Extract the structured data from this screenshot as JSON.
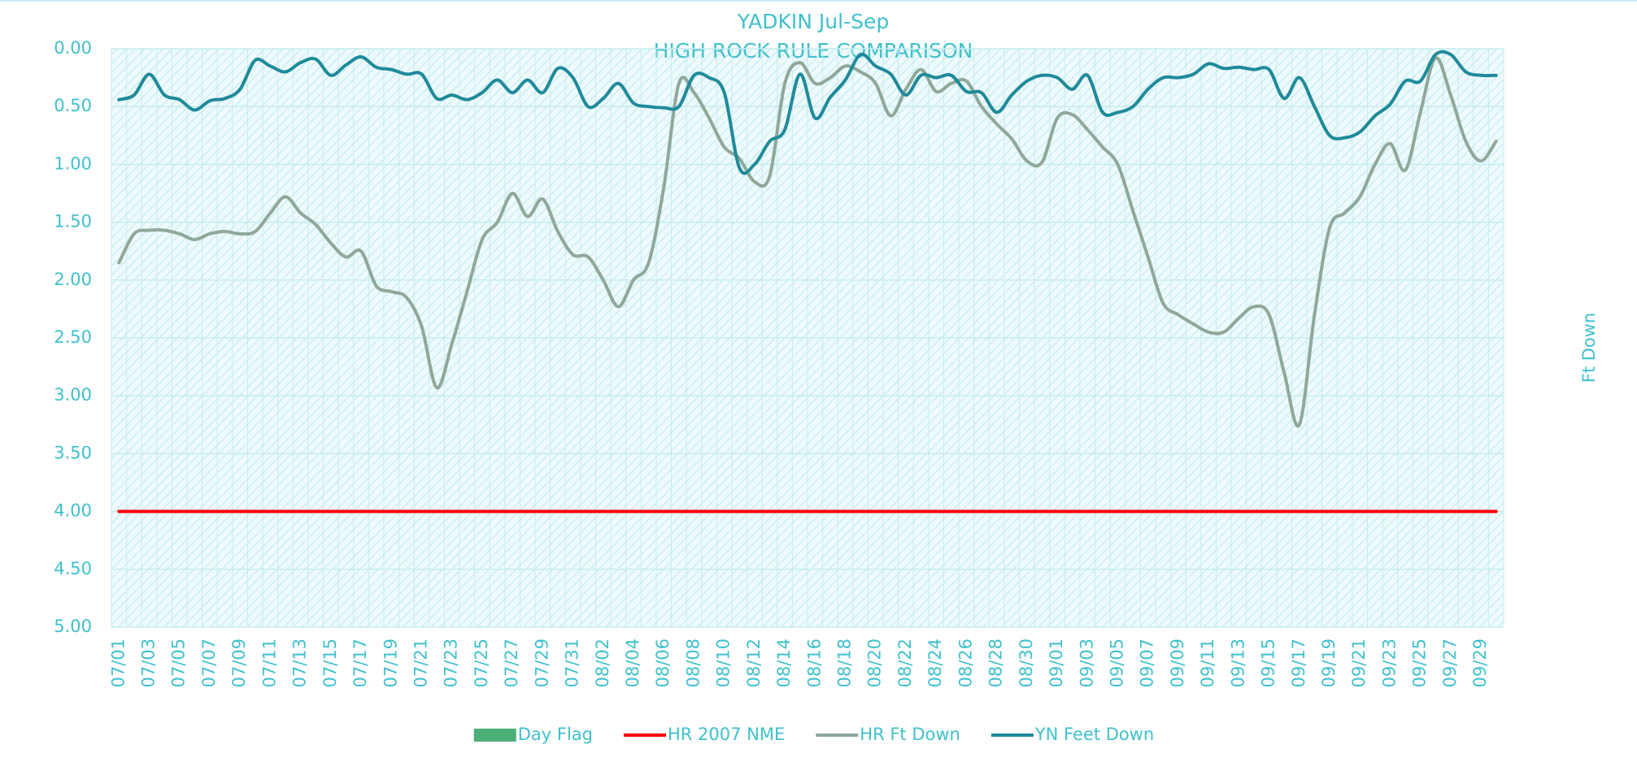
{
  "chart_data": {
    "type": "line",
    "title": "YADKIN Jul-Sep",
    "subtitle": "HIGH ROCK RULE COMPARISON",
    "ylabel": "Ft Down",
    "y_inverted": true,
    "ylim": [
      0,
      5
    ],
    "yticks": [
      {
        "value": 0,
        "label": "0.00"
      },
      {
        "value": 0.5,
        "label": "0.50"
      },
      {
        "value": 1,
        "label": "1.00"
      },
      {
        "value": 1.5,
        "label": "1.50"
      },
      {
        "value": 2,
        "label": "2.00"
      },
      {
        "value": 2.5,
        "label": "2.50"
      },
      {
        "value": 3,
        "label": "3.00"
      },
      {
        "value": 3.5,
        "label": "3.50"
      },
      {
        "value": 4,
        "label": "4.00"
      },
      {
        "value": 4.5,
        "label": "4.50"
      },
      {
        "value": 5,
        "label": "5.00"
      }
    ],
    "grid": true,
    "legend": "bottom",
    "categories": [
      "07/01",
      null,
      "07/03",
      null,
      "07/05",
      null,
      "07/07",
      null,
      "07/09",
      null,
      "07/11",
      null,
      "07/13",
      null,
      "07/15",
      null,
      "07/17",
      null,
      "07/19",
      null,
      "07/21",
      null,
      "07/23",
      null,
      "07/25",
      null,
      "07/27",
      null,
      "07/29",
      null,
      "07/31",
      null,
      "08/02",
      null,
      "08/04",
      null,
      "08/06",
      null,
      "08/08",
      null,
      "08/10",
      null,
      "08/12",
      null,
      "08/14",
      null,
      "08/16",
      null,
      "08/18",
      null,
      "08/20",
      null,
      "08/22",
      null,
      "08/24",
      null,
      "08/26",
      null,
      "08/28",
      null,
      "08/30",
      null,
      "09/01",
      null,
      "09/03",
      null,
      "09/05",
      null,
      "09/07",
      null,
      "09/09",
      null,
      "09/11",
      null,
      "09/13",
      null,
      "09/15",
      null,
      "09/17",
      null,
      "09/19",
      null,
      "09/21",
      null,
      "09/23",
      null,
      "09/25",
      null,
      "09/27",
      null,
      "09/29",
      null
    ],
    "series": [
      {
        "name": "Day Flag",
        "type": "bar",
        "color": "#4caf78",
        "values": [
          0,
          0,
          0,
          0,
          0,
          0,
          0,
          0,
          0,
          0,
          0,
          0,
          0,
          0,
          0,
          0,
          0,
          0,
          0,
          0,
          0,
          0,
          0,
          0,
          0,
          0,
          0,
          0,
          0,
          0,
          0,
          0,
          0,
          0,
          0,
          0,
          0,
          0,
          0,
          0,
          0,
          0,
          0,
          0,
          0,
          0,
          0,
          0,
          0,
          0,
          0,
          0,
          0,
          0,
          0,
          0,
          0,
          0,
          0,
          0,
          0,
          0,
          0,
          0,
          0,
          0,
          0,
          0,
          0,
          0,
          0,
          0,
          0,
          0,
          0,
          0,
          0,
          0,
          0,
          0,
          0,
          0,
          0,
          0,
          0,
          0,
          0,
          0,
          0,
          0,
          0,
          0
        ]
      },
      {
        "name": "HR 2007 NME",
        "type": "line",
        "color": "#ff0000",
        "values": [
          4,
          4,
          4,
          4,
          4,
          4,
          4,
          4,
          4,
          4,
          4,
          4,
          4,
          4,
          4,
          4,
          4,
          4,
          4,
          4,
          4,
          4,
          4,
          4,
          4,
          4,
          4,
          4,
          4,
          4,
          4,
          4,
          4,
          4,
          4,
          4,
          4,
          4,
          4,
          4,
          4,
          4,
          4,
          4,
          4,
          4,
          4,
          4,
          4,
          4,
          4,
          4,
          4,
          4,
          4,
          4,
          4,
          4,
          4,
          4,
          4,
          4,
          4,
          4,
          4,
          4,
          4,
          4,
          4,
          4,
          4,
          4,
          4,
          4,
          4,
          4,
          4,
          4,
          4,
          4,
          4,
          4,
          4,
          4,
          4,
          4,
          4,
          4,
          4,
          4,
          4,
          4
        ]
      },
      {
        "name": "HR Ft Down",
        "type": "line",
        "color": "#8fa89a",
        "values": [
          1.85,
          1.6,
          1.57,
          1.57,
          1.6,
          1.65,
          1.6,
          1.58,
          1.6,
          1.58,
          1.42,
          1.28,
          1.42,
          1.52,
          1.68,
          1.8,
          1.75,
          2.05,
          2.1,
          2.15,
          2.4,
          2.93,
          2.55,
          2.1,
          1.65,
          1.5,
          1.25,
          1.45,
          1.3,
          1.58,
          1.78,
          1.8,
          2.0,
          2.23,
          2.0,
          1.85,
          1.2,
          0.3,
          0.38,
          0.6,
          0.85,
          0.95,
          1.15,
          1.1,
          0.3,
          0.12,
          0.3,
          0.25,
          0.15,
          0.2,
          0.3,
          0.58,
          0.35,
          0.18,
          0.37,
          0.3,
          0.28,
          0.5,
          0.65,
          0.78,
          0.97,
          0.98,
          0.6,
          0.57,
          0.7,
          0.85,
          1.0,
          1.4,
          1.8,
          2.2,
          2.3,
          2.38,
          2.45,
          2.45,
          2.33,
          2.23,
          2.3,
          2.8,
          3.25,
          2.3,
          1.55,
          1.42,
          1.28,
          1.0,
          0.82,
          1.05,
          0.55,
          0.08,
          0.4,
          0.8,
          0.97,
          0.8
        ]
      },
      {
        "name": "YN Feet Down",
        "type": "line",
        "color": "#1f8a9a",
        "values": [
          0.44,
          0.4,
          0.22,
          0.4,
          0.44,
          0.53,
          0.45,
          0.43,
          0.35,
          0.1,
          0.15,
          0.2,
          0.12,
          0.09,
          0.23,
          0.14,
          0.07,
          0.16,
          0.18,
          0.22,
          0.22,
          0.43,
          0.4,
          0.44,
          0.38,
          0.27,
          0.38,
          0.27,
          0.38,
          0.17,
          0.25,
          0.5,
          0.43,
          0.3,
          0.47,
          0.5,
          0.51,
          0.5,
          0.23,
          0.25,
          0.38,
          1.03,
          1.0,
          0.8,
          0.7,
          0.22,
          0.6,
          0.42,
          0.27,
          0.05,
          0.15,
          0.22,
          0.4,
          0.23,
          0.25,
          0.23,
          0.37,
          0.38,
          0.55,
          0.4,
          0.28,
          0.23,
          0.25,
          0.35,
          0.23,
          0.55,
          0.55,
          0.5,
          0.35,
          0.25,
          0.25,
          0.22,
          0.13,
          0.17,
          0.16,
          0.18,
          0.18,
          0.43,
          0.25,
          0.5,
          0.75,
          0.77,
          0.72,
          0.58,
          0.48,
          0.28,
          0.28,
          0.05,
          0.05,
          0.2,
          0.23,
          0.23
        ]
      }
    ]
  }
}
